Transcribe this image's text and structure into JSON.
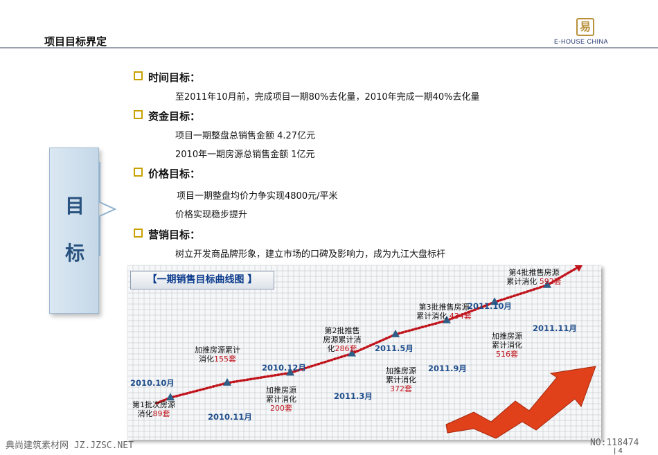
{
  "header": {
    "title": "项目目标界定",
    "logo_text": "E-HOUSE CHINA",
    "logo_char": "易"
  },
  "goal_box": {
    "chars": [
      "目",
      "标"
    ]
  },
  "sections": [
    {
      "heading": "时间目标：",
      "lines": [
        "至2011年10月前，完成项目一期80%去化量，2010年完成一期40%去化量"
      ]
    },
    {
      "heading": "资金目标：",
      "lines": [
        "项目一期整盘总销售金额 4.27亿元",
        "2010年一期房源总销售金额 1亿元"
      ]
    },
    {
      "heading": "价格目标：",
      "lines": [
        "项目一期整盘均价力争实现4800元/平米",
        "价格实现稳步提升"
      ]
    },
    {
      "heading": "营销目标：",
      "lines": [
        "树立开发商品牌形象，建立市场的口碑及影响力，成为九江大盘标杆"
      ]
    }
  ],
  "chart_data": {
    "type": "line",
    "title": "【一期销售目标曲线图 】",
    "x": [
      "2010.10月",
      "2010.11月",
      "2010.12月",
      "2011.3月",
      "2011.5月",
      "2011.9月",
      "2011.10月",
      "2011.11月"
    ],
    "values": [
      89,
      155,
      200,
      286,
      372,
      434,
      516,
      592
    ],
    "annotations": [
      {
        "text_pre": "第1批次房源\n消化",
        "value": "89",
        "unit": "套"
      },
      {
        "text_pre": "加推房源累计\n消化",
        "value": "155",
        "unit": "套"
      },
      {
        "text_pre": "加推房源\n累计消化\n",
        "value": "200",
        "unit": "套"
      },
      {
        "text_pre": "第2批推售\n房源累计消\n化",
        "value": "286",
        "unit": "套"
      },
      {
        "text_pre": "加推房源\n累计消化\n",
        "value": "372",
        "unit": "套"
      },
      {
        "text_pre": "第3批推售房源\n累计消化 ",
        "value": "434",
        "unit": "套"
      },
      {
        "text_pre": "加推房源\n累计消化\n",
        "value": "516",
        "unit": "套"
      },
      {
        "text_pre": "第4批推售房源\n累计消化 ",
        "value": "592",
        "unit": "套"
      }
    ],
    "colors": {
      "curve": "#c0141c",
      "marker": "#2f5f86",
      "date": "#1f4e8c",
      "value": "#c0141c",
      "grid": "#b9bec4"
    }
  },
  "footer": {
    "left": "典尚建筑素材网 JZ.JZSC.NET",
    "right": "NO:118474",
    "page": "| 4"
  }
}
